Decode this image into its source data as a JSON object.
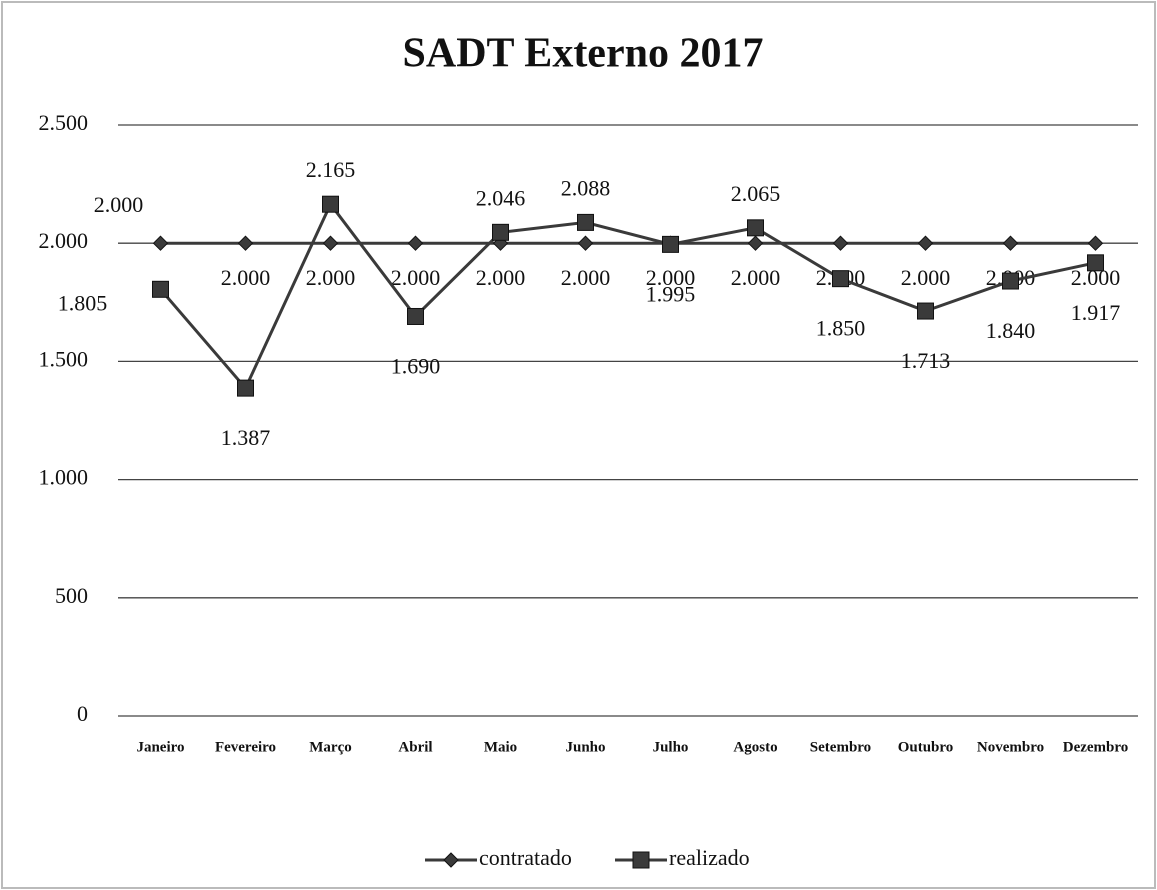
{
  "chart_data": {
    "type": "line",
    "title": "SADT Externo 2017",
    "categories": [
      "Janeiro",
      "Fevereiro",
      "Março",
      "Abril",
      "Maio",
      "Junho",
      "Julho",
      "Agosto",
      "Setembro",
      "Outubro",
      "Novembro",
      "Dezembro"
    ],
    "series": [
      {
        "name": "contratado",
        "color": "#3a3a3a",
        "marker": "diamond",
        "values": [
          2000,
          2000,
          2000,
          2000,
          2000,
          2000,
          2000,
          2000,
          2000,
          2000,
          2000,
          2000
        ],
        "value_labels": [
          "2.000",
          "2.000",
          "2.000",
          "2.000",
          "2.000",
          "2.000",
          "2.000",
          "2.000",
          "2.000",
          "2.000",
          "2.000",
          "2.000"
        ]
      },
      {
        "name": "realizado",
        "color": "#3a3a3a",
        "marker": "square",
        "values": [
          1805,
          1387,
          2165,
          1690,
          2046,
          2088,
          1995,
          2065,
          1850,
          1713,
          1840,
          1917
        ],
        "value_labels": [
          "1.805",
          "1.387",
          "2.165",
          "1.690",
          "2.046",
          "2.088",
          "1.995",
          "2.065",
          "1.850",
          "1.713",
          "1.840",
          "1.917"
        ]
      }
    ],
    "ylim": [
      0,
      2500
    ],
    "yticks": [
      0,
      500,
      {
        "value": 1000,
        "label": "1.000"
      },
      {
        "value": 1500,
        "label": "1.500"
      },
      {
        "value": 2000,
        "label": "2.000"
      },
      {
        "value": 2500,
        "label": "2.500"
      }
    ],
    "grid": true,
    "legend": "bottom"
  }
}
